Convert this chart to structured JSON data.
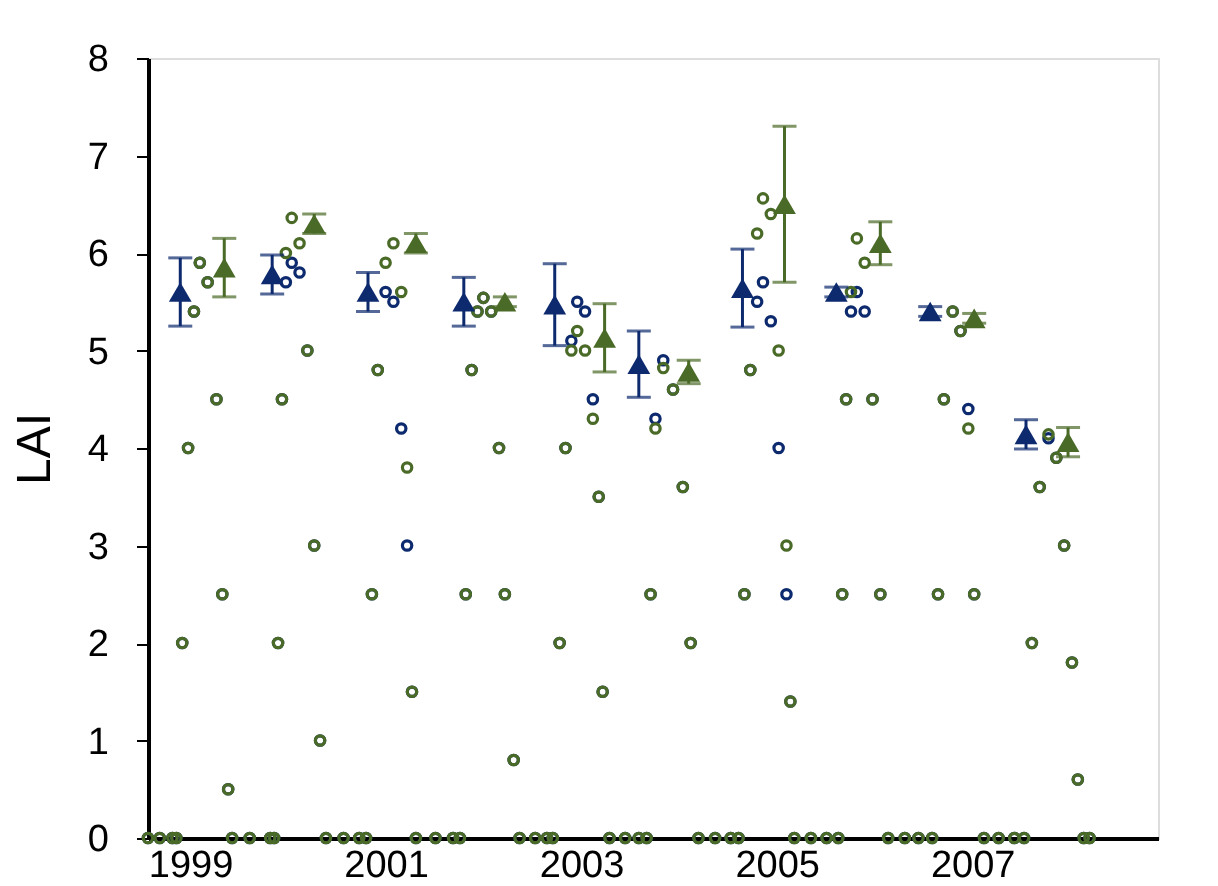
{
  "chart_data": {
    "type": "scatter",
    "ylabel": "LAI",
    "xlim": [
      1998.57,
      2008.9
    ],
    "xticks": [
      1999,
      2001,
      2003,
      2005,
      2007
    ],
    "ylim": [
      0,
      8
    ],
    "yticks": [
      0,
      1,
      2,
      3,
      4,
      5,
      6,
      7,
      8
    ],
    "grid": false,
    "x": [
      1998.57,
      1998.69,
      1998.82,
      1998.86,
      1998.92,
      1998.98,
      1999.04,
      1999.1,
      1999.18,
      1999.27,
      1999.33,
      1999.39,
      1999.43,
      1999.61,
      1999.82,
      1999.86,
      1999.9,
      1999.94,
      1999.98,
      2000.04,
      2000.12,
      2000.2,
      2000.27,
      2000.33,
      2000.39,
      2000.57,
      2000.73,
      2000.8,
      2000.86,
      2000.92,
      2001.0,
      2001.08,
      2001.16,
      2001.22,
      2001.27,
      2001.31,
      2001.51,
      2001.69,
      2001.76,
      2001.82,
      2001.88,
      2001.94,
      2002.0,
      2002.08,
      2002.16,
      2002.22,
      2002.31,
      2002.37,
      2002.53,
      2002.65,
      2002.71,
      2002.78,
      2002.84,
      2002.9,
      2002.96,
      2003.04,
      2003.12,
      2003.18,
      2003.22,
      2003.29,
      2003.45,
      2003.59,
      2003.67,
      2003.71,
      2003.76,
      2003.84,
      2003.94,
      2004.04,
      2004.12,
      2004.2,
      2004.37,
      2004.53,
      2004.61,
      2004.67,
      2004.73,
      2004.8,
      2004.86,
      2004.94,
      2005.02,
      2005.1,
      2005.14,
      2005.18,
      2005.35,
      2005.51,
      2005.63,
      2005.67,
      2005.71,
      2005.76,
      2005.82,
      2005.9,
      2005.98,
      2006.06,
      2006.14,
      2006.31,
      2006.45,
      2006.59,
      2006.65,
      2006.71,
      2006.8,
      2006.88,
      2006.96,
      2007.02,
      2007.12,
      2007.27,
      2007.43,
      2007.53,
      2007.61,
      2007.69,
      2007.78,
      2007.86,
      2007.94,
      2008.02,
      2008.08,
      2008.14,
      2008.2
    ],
    "series": [
      {
        "color": "#0d2a6e",
        "marker": "circle",
        "values": [
          0,
          0,
          0,
          0,
          2.0,
          4.0,
          5.4,
          5.9,
          5.7,
          4.5,
          2.5,
          0.5,
          0,
          0,
          0,
          0,
          2.0,
          4.5,
          5.7,
          5.9,
          5.8,
          5.0,
          3.0,
          1.0,
          0,
          0,
          0,
          0,
          2.5,
          4.8,
          5.6,
          5.5,
          4.2,
          3.0,
          1.5,
          0,
          0,
          0,
          0,
          2.5,
          4.8,
          5.4,
          5.54,
          5.4,
          4.0,
          2.5,
          0.8,
          0,
          0,
          0,
          0,
          2.0,
          4.0,
          5.1,
          5.5,
          5.4,
          4.5,
          3.5,
          1.5,
          0,
          0,
          0,
          0,
          2.5,
          4.3,
          4.9,
          4.6,
          3.6,
          2.0,
          0,
          0,
          0,
          0,
          2.5,
          4.8,
          5.5,
          5.7,
          5.3,
          4.0,
          2.5,
          1.4,
          0,
          0,
          0,
          0,
          2.5,
          4.5,
          5.4,
          5.6,
          5.4,
          4.5,
          2.5,
          0,
          0,
          0,
          0,
          2.5,
          4.5,
          5.4,
          5.2,
          4.4,
          2.5,
          0,
          0,
          0,
          0,
          2.0,
          3.6,
          4.1,
          3.9,
          3.0,
          1.8,
          0.6,
          0,
          0
        ]
      },
      {
        "color": "#4a6a27",
        "marker": "circle",
        "values": [
          0,
          0,
          0,
          0,
          2.0,
          4.0,
          5.4,
          5.9,
          5.7,
          4.5,
          2.5,
          0.5,
          0,
          0,
          0,
          0,
          2.0,
          4.5,
          6.0,
          6.36,
          6.1,
          5.0,
          3.0,
          1.0,
          0,
          0,
          0,
          0,
          2.5,
          4.8,
          5.9,
          6.1,
          5.6,
          3.8,
          1.5,
          0,
          0,
          0,
          0,
          2.5,
          4.8,
          5.4,
          5.54,
          5.4,
          4.0,
          2.5,
          0.8,
          0,
          0,
          0,
          0,
          2.0,
          4.0,
          5.0,
          5.2,
          5.0,
          4.3,
          3.5,
          1.5,
          0,
          0,
          0,
          0,
          2.5,
          4.2,
          4.82,
          4.6,
          3.6,
          2.0,
          0,
          0,
          0,
          0,
          2.5,
          4.8,
          6.2,
          6.56,
          6.4,
          5.0,
          3.0,
          1.4,
          0,
          0,
          0,
          0,
          2.5,
          4.5,
          5.6,
          6.15,
          5.9,
          4.5,
          2.5,
          0,
          0,
          0,
          0,
          2.5,
          4.5,
          5.4,
          5.2,
          4.2,
          2.5,
          0,
          0,
          0,
          0,
          2.0,
          3.6,
          4.14,
          3.9,
          3.0,
          1.8,
          0.6,
          0,
          0
        ]
      },
      {
        "color": "#0d2a6e",
        "marker": "triangle",
        "x": [
          1998.9,
          1999.84,
          2000.82,
          2001.8,
          2002.73,
          2003.59,
          2004.65,
          2005.61,
          2006.57,
          2007.55
        ],
        "values": [
          5.6,
          5.78,
          5.6,
          5.5,
          5.47,
          4.86,
          5.64,
          5.6,
          5.4,
          4.14
        ],
        "errors": [
          0.35,
          0.2,
          0.2,
          0.25,
          0.42,
          0.34,
          0.4,
          0.05,
          0.05,
          0.15
        ]
      },
      {
        "color": "#4a6a27",
        "marker": "triangle",
        "x": [
          1999.35,
          2000.27,
          2001.31,
          2002.22,
          2003.24,
          2004.1,
          2005.08,
          2006.06,
          2007.02,
          2007.98
        ],
        "values": [
          5.85,
          6.3,
          6.1,
          5.5,
          5.13,
          4.78,
          6.5,
          6.1,
          5.33,
          4.06
        ],
        "errors": [
          0.3,
          0.1,
          0.1,
          0.05,
          0.35,
          0.12,
          0.8,
          0.22,
          0.05,
          0.15
        ]
      }
    ]
  }
}
